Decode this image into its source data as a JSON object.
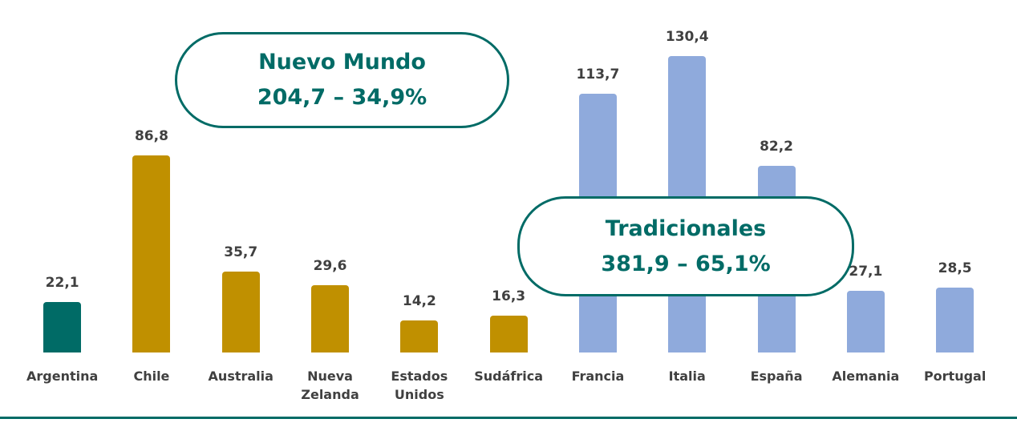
{
  "chart_data": {
    "type": "bar",
    "categories": [
      "Argentina",
      "Chile",
      "Australia",
      "Nueva Zelanda",
      "Estados Unidos",
      "Sudáfrica",
      "Francia",
      "Italia",
      "España",
      "Alemania",
      "Portugal"
    ],
    "values": [
      22.1,
      86.8,
      35.7,
      29.6,
      14.2,
      16.3,
      113.7,
      130.4,
      82.2,
      27.1,
      28.5
    ],
    "value_labels": [
      "22,1",
      "86,8",
      "35,7",
      "29,6",
      "14,2",
      "16,3",
      "113,7",
      "130,4",
      "82,2",
      "27,1",
      "28,5"
    ],
    "colors": [
      "#006b66",
      "#c09000",
      "#c09000",
      "#c09000",
      "#c09000",
      "#c09000",
      "#8faadc",
      "#8faadc",
      "#8faadc",
      "#8faadc",
      "#8faadc"
    ],
    "annotations": [
      {
        "title": "Nuevo Mundo",
        "text": "204,7 – 34,9%"
      },
      {
        "title": "Tradicionales",
        "text": "381,9 – 65,1%"
      }
    ]
  }
}
